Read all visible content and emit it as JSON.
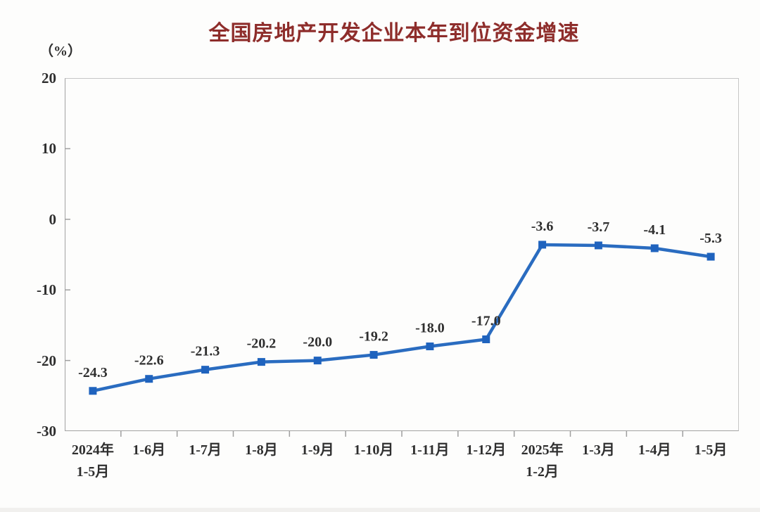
{
  "chart_data": {
    "type": "line",
    "title": "全国房地产开发企业本年到位资金增速",
    "unit_label": "（%）",
    "categories": [
      "2024年\n1-5月",
      "1-6月",
      "1-7月",
      "1-8月",
      "1-9月",
      "1-10月",
      "1-11月",
      "1-12月",
      "2025年\n1-2月",
      "1-3月",
      "1-4月",
      "1-5月"
    ],
    "values": [
      -24.3,
      -22.6,
      -21.3,
      -20.2,
      -20.0,
      -19.2,
      -18.0,
      -17.0,
      -3.6,
      -3.7,
      -4.1,
      -5.3
    ],
    "data_labels": [
      "-24.3",
      "-22.6",
      "-21.3",
      "-20.2",
      "-20.0",
      "-19.2",
      "-18.0",
      "-17.0",
      "-3.6",
      "-3.7",
      "-4.1",
      "-5.3"
    ],
    "yticks": [
      20,
      10,
      0,
      -10,
      -20,
      -30
    ],
    "ylim": [
      -30,
      20
    ],
    "grid": false,
    "legend": "none",
    "marker_shape": "square",
    "colors": {
      "line": "#2a6cc0",
      "marker": "#1f63be",
      "title": "#8e2d2b",
      "label_text": "#2f2f2f",
      "axis_tick": "#9f9f9f",
      "border": "#c6c6c6"
    }
  }
}
